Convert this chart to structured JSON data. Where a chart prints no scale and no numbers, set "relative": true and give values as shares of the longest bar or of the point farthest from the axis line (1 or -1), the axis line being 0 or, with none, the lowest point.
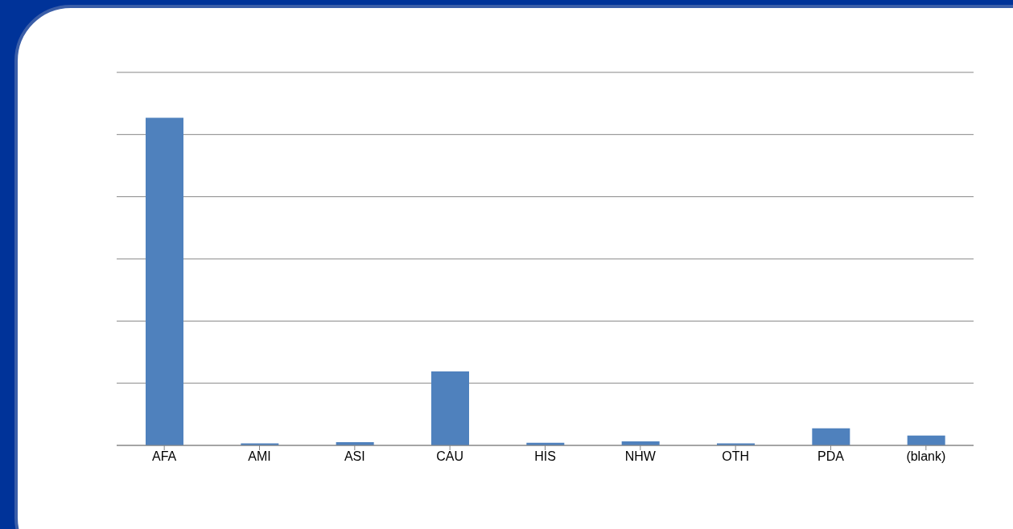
{
  "chart_data": {
    "type": "bar",
    "relative": true,
    "categories": [
      "AFA",
      "AMI",
      "ASI",
      "CAU",
      "HIS",
      "NHW",
      "OTH",
      "PDA",
      "(blank)"
    ],
    "values": [
      1,
      0.006,
      0.01,
      0.226,
      0.008,
      0.012,
      0.006,
      0.052,
      0.03
    ],
    "color": "#4f81bd",
    "grid": "y"
  }
}
